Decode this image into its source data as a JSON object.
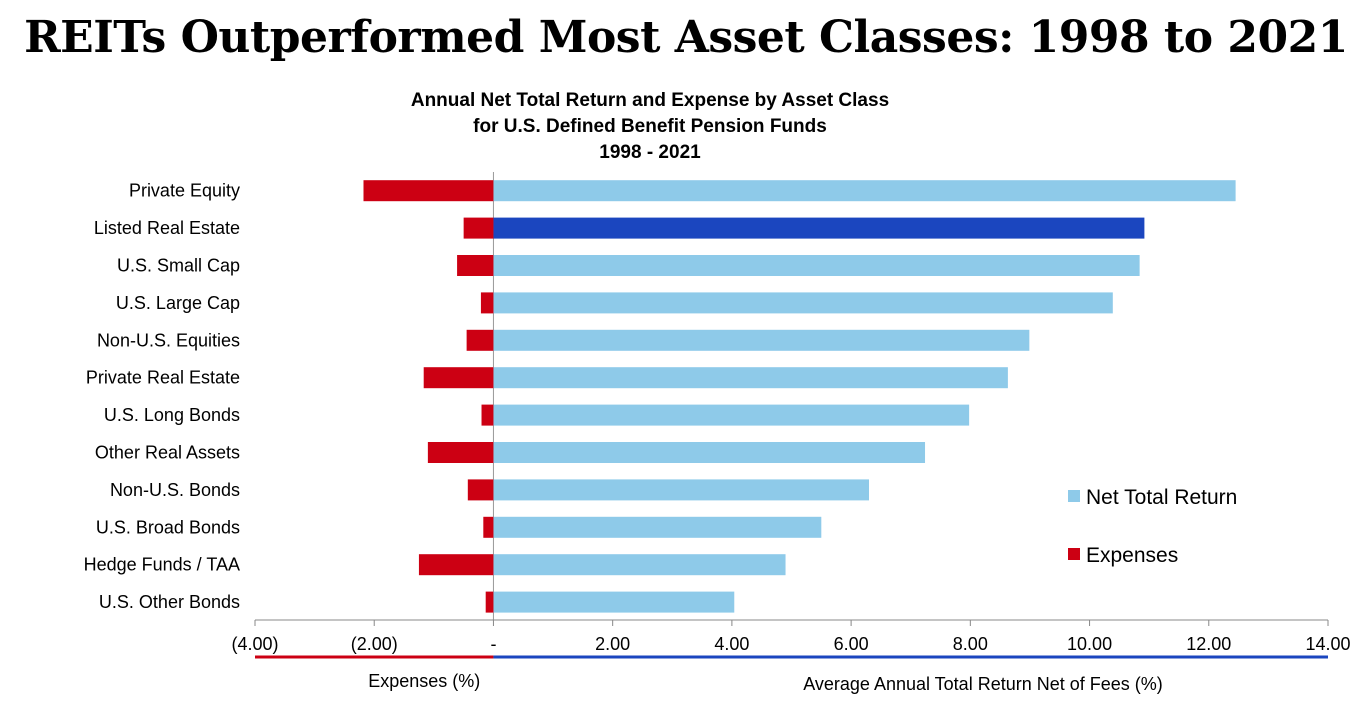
{
  "headline": "REITs Outperformed Most Asset Classes: 1998 to 2021",
  "chart_data": {
    "type": "bar",
    "orientation": "horizontal",
    "title": "Annual Net Total Return and Expense by Asset Class",
    "subtitle": [
      "for U.S. Defined Benefit Pension Funds",
      "1998 - 2021"
    ],
    "categories": [
      "Private Equity",
      "Listed Real Estate",
      "U.S. Small Cap",
      "U.S. Large Cap",
      "Non-U.S. Equities",
      "Private Real Estate",
      "U.S. Long Bonds",
      "Other Real Assets",
      "Non-U.S. Bonds",
      "U.S. Broad Bonds",
      "Hedge Funds / TAA",
      "U.S. Other Bonds"
    ],
    "series": [
      {
        "name": "Net Total Return",
        "color": "#8ecae9",
        "highlight_color": "#1b46bf",
        "highlight_category": "Listed Real Estate",
        "values": [
          12.45,
          10.92,
          10.84,
          10.39,
          8.99,
          8.63,
          7.98,
          7.24,
          6.3,
          5.5,
          4.9,
          4.04
        ]
      },
      {
        "name": "Expenses",
        "color": "#cc0013",
        "values": [
          -2.18,
          -0.5,
          -0.61,
          -0.21,
          -0.45,
          -1.17,
          -0.2,
          -1.1,
          -0.43,
          -0.17,
          -1.25,
          -0.13
        ]
      }
    ],
    "xlim": [
      -4,
      14
    ],
    "xticks": [
      -4,
      -2,
      0,
      2,
      4,
      6,
      8,
      10,
      12,
      14
    ],
    "xtick_labels": [
      "(4.00)",
      "(2.00)",
      "-",
      "2.00",
      "4.00",
      "6.00",
      "8.00",
      "10.00",
      "12.00",
      "14.00"
    ],
    "xlabel_left": "Expenses (%)",
    "xlabel_right": "Average Annual Total Return Net of Fees (%)",
    "left_axis_color": "#cc0013",
    "right_axis_color": "#1b46bf",
    "legend_position": "center-right"
  }
}
